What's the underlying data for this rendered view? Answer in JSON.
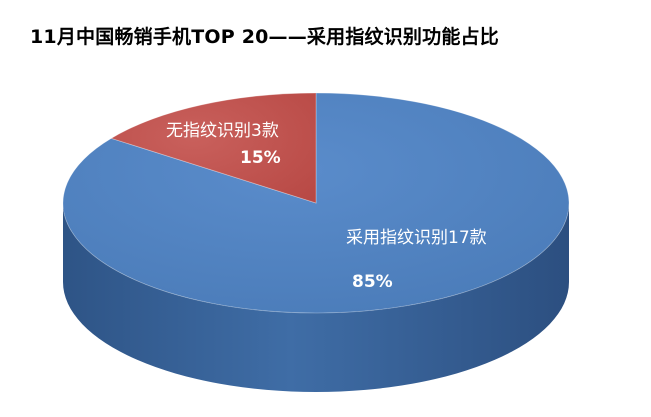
{
  "chart_data": {
    "type": "pie",
    "style": "3d",
    "title": "11月中国畅销手机TOP 20——采用指纹识别功能占比",
    "slices": [
      {
        "label": "采用指纹识别17款",
        "value": 17,
        "percent_label": "85%",
        "color": "#4F81BD",
        "side_color": "#3A6497"
      },
      {
        "label": "无指纹识别3款",
        "value": 3,
        "percent_label": "15%",
        "color": "#C0504D",
        "side_color": "#943B39"
      }
    ],
    "legend": "none"
  }
}
